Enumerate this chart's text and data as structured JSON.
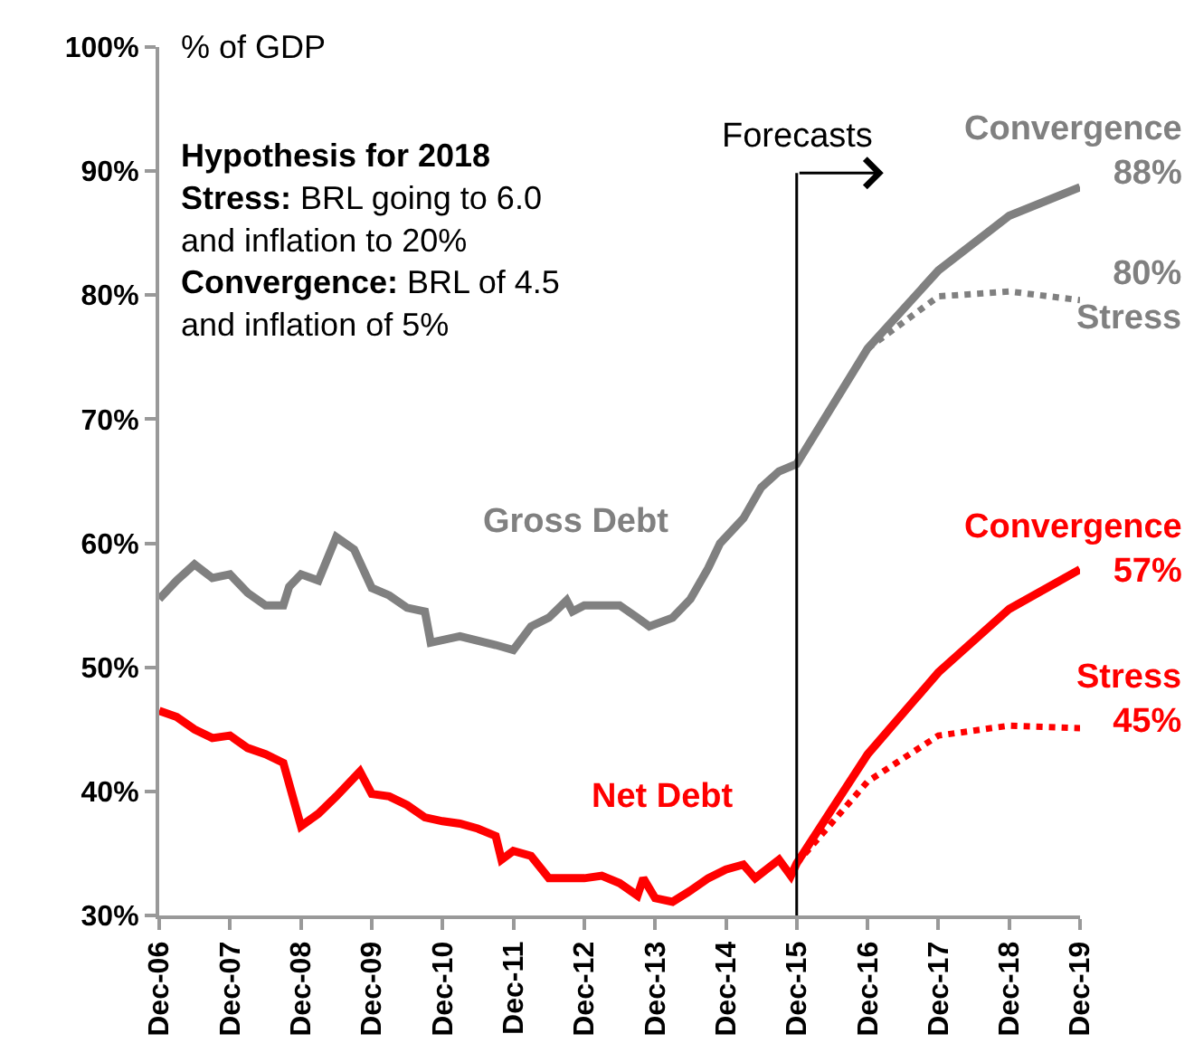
{
  "chart_data": {
    "type": "line",
    "ylabel": "% of GDP",
    "xlim": [
      "2006-12",
      "2019-12"
    ],
    "xticks": [
      {
        "value": "2006-12",
        "label": "Dec-06"
      },
      {
        "value": "2007-12",
        "label": "Dec-07"
      },
      {
        "value": "2008-12",
        "label": "Dec-08"
      },
      {
        "value": "2009-12",
        "label": "Dec-09"
      },
      {
        "value": "2010-12",
        "label": "Dec-10"
      },
      {
        "value": "2011-12",
        "label": "Dec-11"
      },
      {
        "value": "2012-12",
        "label": "Dec-12"
      },
      {
        "value": "2013-12",
        "label": "Dec-13"
      },
      {
        "value": "2014-12",
        "label": "Dec-14"
      },
      {
        "value": "2015-12",
        "label": "Dec-15"
      },
      {
        "value": "2016-12",
        "label": "Dec-16"
      },
      {
        "value": "2017-12",
        "label": "Dec-17"
      },
      {
        "value": "2018-12",
        "label": "Dec-18"
      },
      {
        "value": "2019-12",
        "label": "Dec-19"
      }
    ],
    "ylim": [
      30,
      100
    ],
    "yticks": [
      {
        "value": 30,
        "label": "30%"
      },
      {
        "value": 40,
        "label": "40%"
      },
      {
        "value": 50,
        "label": "50%"
      },
      {
        "value": 60,
        "label": "60%"
      },
      {
        "value": 70,
        "label": "70%"
      },
      {
        "value": 80,
        "label": "80%"
      },
      {
        "value": 90,
        "label": "90%"
      },
      {
        "value": 100,
        "label": "100%"
      }
    ],
    "grid": false,
    "marker": "none",
    "series": [
      {
        "color": "#808080",
        "line_style": "solid",
        "x": [
          "2006-12",
          "2007-03",
          "2007-06",
          "2007-09",
          "2007-12",
          "2008-03",
          "2008-06",
          "2008-09",
          "2008-10",
          "2008-12",
          "2009-03",
          "2009-06",
          "2009-09",
          "2009-12",
          "2010-03",
          "2010-06",
          "2010-09",
          "2010-10",
          "2011-03",
          "2011-09",
          "2011-12",
          "2012-03",
          "2012-06",
          "2012-09",
          "2012-10",
          "2012-12",
          "2013-06",
          "2013-09",
          "2013-11",
          "2014-03",
          "2014-06",
          "2014-09",
          "2014-11",
          "2015-03",
          "2015-06",
          "2015-09",
          "2015-12",
          "2016-12",
          "2017-12",
          "2018-12",
          "2019-12"
        ],
        "values": [
          55.5,
          57,
          58.3,
          57.2,
          57.5,
          56,
          55,
          55,
          56.5,
          57.5,
          57,
          60.5,
          59.5,
          56.4,
          55.8,
          54.8,
          54.5,
          52,
          52.5,
          51.8,
          51.4,
          53.3,
          54,
          55.4,
          54.5,
          55,
          55,
          54,
          53.3,
          54,
          55.5,
          58,
          60,
          62,
          64.5,
          65.8,
          66.4,
          75.7,
          82,
          86.4,
          88.7
        ]
      },
      {
        "color": "#808080",
        "line_style": "dotted",
        "x": [
          "2016-12",
          "2017-12",
          "2018-12",
          "2019-12"
        ],
        "values": [
          75.7,
          79.9,
          80.3,
          79.6
        ]
      },
      {
        "color": "#ff0000",
        "line_style": "solid",
        "x": [
          "2006-12",
          "2007-03",
          "2007-06",
          "2007-09",
          "2007-12",
          "2008-03",
          "2008-06",
          "2008-09",
          "2008-12",
          "2009-03",
          "2009-06",
          "2009-10",
          "2009-12",
          "2010-03",
          "2010-06",
          "2010-09",
          "2010-12",
          "2011-03",
          "2011-06",
          "2011-09",
          "2011-10",
          "2011-12",
          "2012-03",
          "2012-06",
          "2012-09",
          "2012-12",
          "2013-03",
          "2013-06",
          "2013-09",
          "2013-10",
          "2013-12",
          "2014-03",
          "2014-06",
          "2014-09",
          "2014-12",
          "2015-03",
          "2015-05",
          "2015-09",
          "2015-11",
          "2015-12",
          "2016-12",
          "2017-12",
          "2018-12",
          "2019-12"
        ],
        "values": [
          46.5,
          46,
          45,
          44.3,
          44.5,
          43.5,
          43,
          42.3,
          37.2,
          38.2,
          39.6,
          41.6,
          39.8,
          39.6,
          38.9,
          37.9,
          37.6,
          37.4,
          37,
          36.4,
          34.5,
          35.2,
          34.8,
          33,
          33,
          33,
          33.2,
          32.6,
          31.6,
          33,
          31.4,
          31.1,
          32,
          33,
          33.7,
          34.1,
          33,
          34.5,
          33.2,
          34.2,
          43,
          49.6,
          54.7,
          57.9
        ]
      },
      {
        "color": "#ff0000",
        "line_style": "dotted",
        "x": [
          "2015-12",
          "2016-12",
          "2017-12",
          "2018-12",
          "2019-12"
        ],
        "values": [
          34.2,
          40.8,
          44.5,
          45.3,
          45.1
        ]
      }
    ],
    "ref_lines": [
      {
        "axis": "x",
        "value": "2015-12",
        "label": "Forecasts",
        "color": "#000000"
      }
    ],
    "annotations": [
      "Hypothesis for 2018\nStress: BRL going to 6.0\nand inflation to 20%\nConvergence: BRL of 4.5\nand inflation of 5%",
      "Gross Debt",
      "Net Debt",
      {
        "text": "Convergence\n88%",
        "x": "2019-12",
        "y": 88.7
      },
      {
        "text": "80%\nStress",
        "x": "2019-12",
        "y": 79.6
      },
      {
        "text": "Convergence\n57%",
        "x": "2019-12",
        "y": 57.9
      },
      {
        "text": "Stress\n45%",
        "x": "2019-12",
        "y": 45.1
      }
    ]
  }
}
